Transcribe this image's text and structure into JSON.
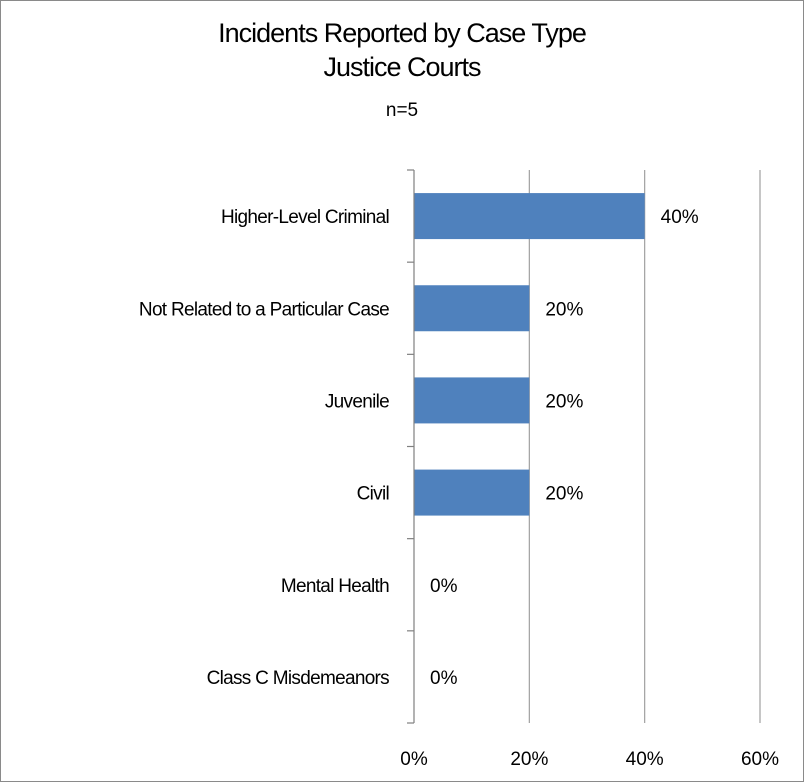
{
  "chart_data": {
    "type": "bar",
    "orientation": "horizontal",
    "title": "Incidents Reported by Case Type",
    "subtitle": "Justice Courts",
    "note": "n=5",
    "categories": [
      "Higher-Level Criminal",
      "Not Related to a Particular Case",
      "Juvenile",
      "Civil",
      "Mental Health",
      "Class C Misdemeanors"
    ],
    "values": [
      40,
      20,
      20,
      20,
      0,
      0
    ],
    "data_labels": [
      "40%",
      "20%",
      "20%",
      "20%",
      "0%",
      "0%"
    ],
    "xlim": [
      0,
      60
    ],
    "x_ticks": [
      0,
      20,
      40,
      60
    ],
    "x_tick_labels": [
      "0%",
      "20%",
      "40%",
      "60%"
    ],
    "xlabel": "",
    "ylabel": "",
    "grid": "vertical",
    "legend": "none",
    "colors": {
      "bar": "#4F81BD",
      "grid": "#A0A0A0",
      "axis": "#808080"
    }
  }
}
